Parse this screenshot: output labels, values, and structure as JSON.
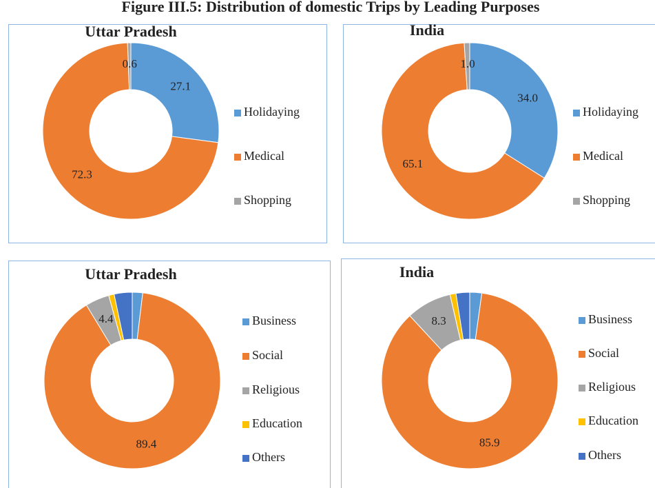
{
  "title": "Figure III.5: Distribution of domestic Trips by Leading Purposes",
  "chart_data": [
    {
      "type": "donut",
      "title": "Uttar Pradesh",
      "categories": [
        "Holidaying",
        "Medical",
        "Shopping"
      ],
      "values": [
        27.1,
        72.3,
        0.6
      ],
      "value_labels": [
        "27.1",
        "72.3",
        "0.6"
      ],
      "colors": [
        "#5b9bd5",
        "#ed7d31",
        "#a5a5a5"
      ]
    },
    {
      "type": "donut",
      "title": "India",
      "categories": [
        "Holidaying",
        "Medical",
        "Shopping"
      ],
      "values": [
        34.0,
        65.1,
        1.0
      ],
      "value_labels": [
        "34.0",
        "65.1",
        "1.0"
      ],
      "colors": [
        "#5b9bd5",
        "#ed7d31",
        "#a5a5a5"
      ]
    },
    {
      "type": "donut",
      "title": "Uttar Pradesh",
      "categories": [
        "Business",
        "Social",
        "Religious",
        "Education",
        "Others"
      ],
      "values": [
        1.9,
        89.4,
        4.4,
        1.0,
        3.3
      ],
      "value_labels": [
        null,
        "89.4",
        "4.4",
        null,
        null
      ],
      "colors": [
        "#5b9bd5",
        "#ed7d31",
        "#a5a5a5",
        "#ffc000",
        "#4472c4"
      ]
    },
    {
      "type": "donut",
      "title": "India",
      "categories": [
        "Business",
        "Social",
        "Religious",
        "Education",
        "Others"
      ],
      "values": [
        2.2,
        85.9,
        8.3,
        1.1,
        2.5
      ],
      "value_labels": [
        null,
        "85.9",
        "8.3",
        null,
        null
      ],
      "colors": [
        "#5b9bd5",
        "#ed7d31",
        "#a5a5a5",
        "#ffc000",
        "#4472c4"
      ]
    }
  ]
}
